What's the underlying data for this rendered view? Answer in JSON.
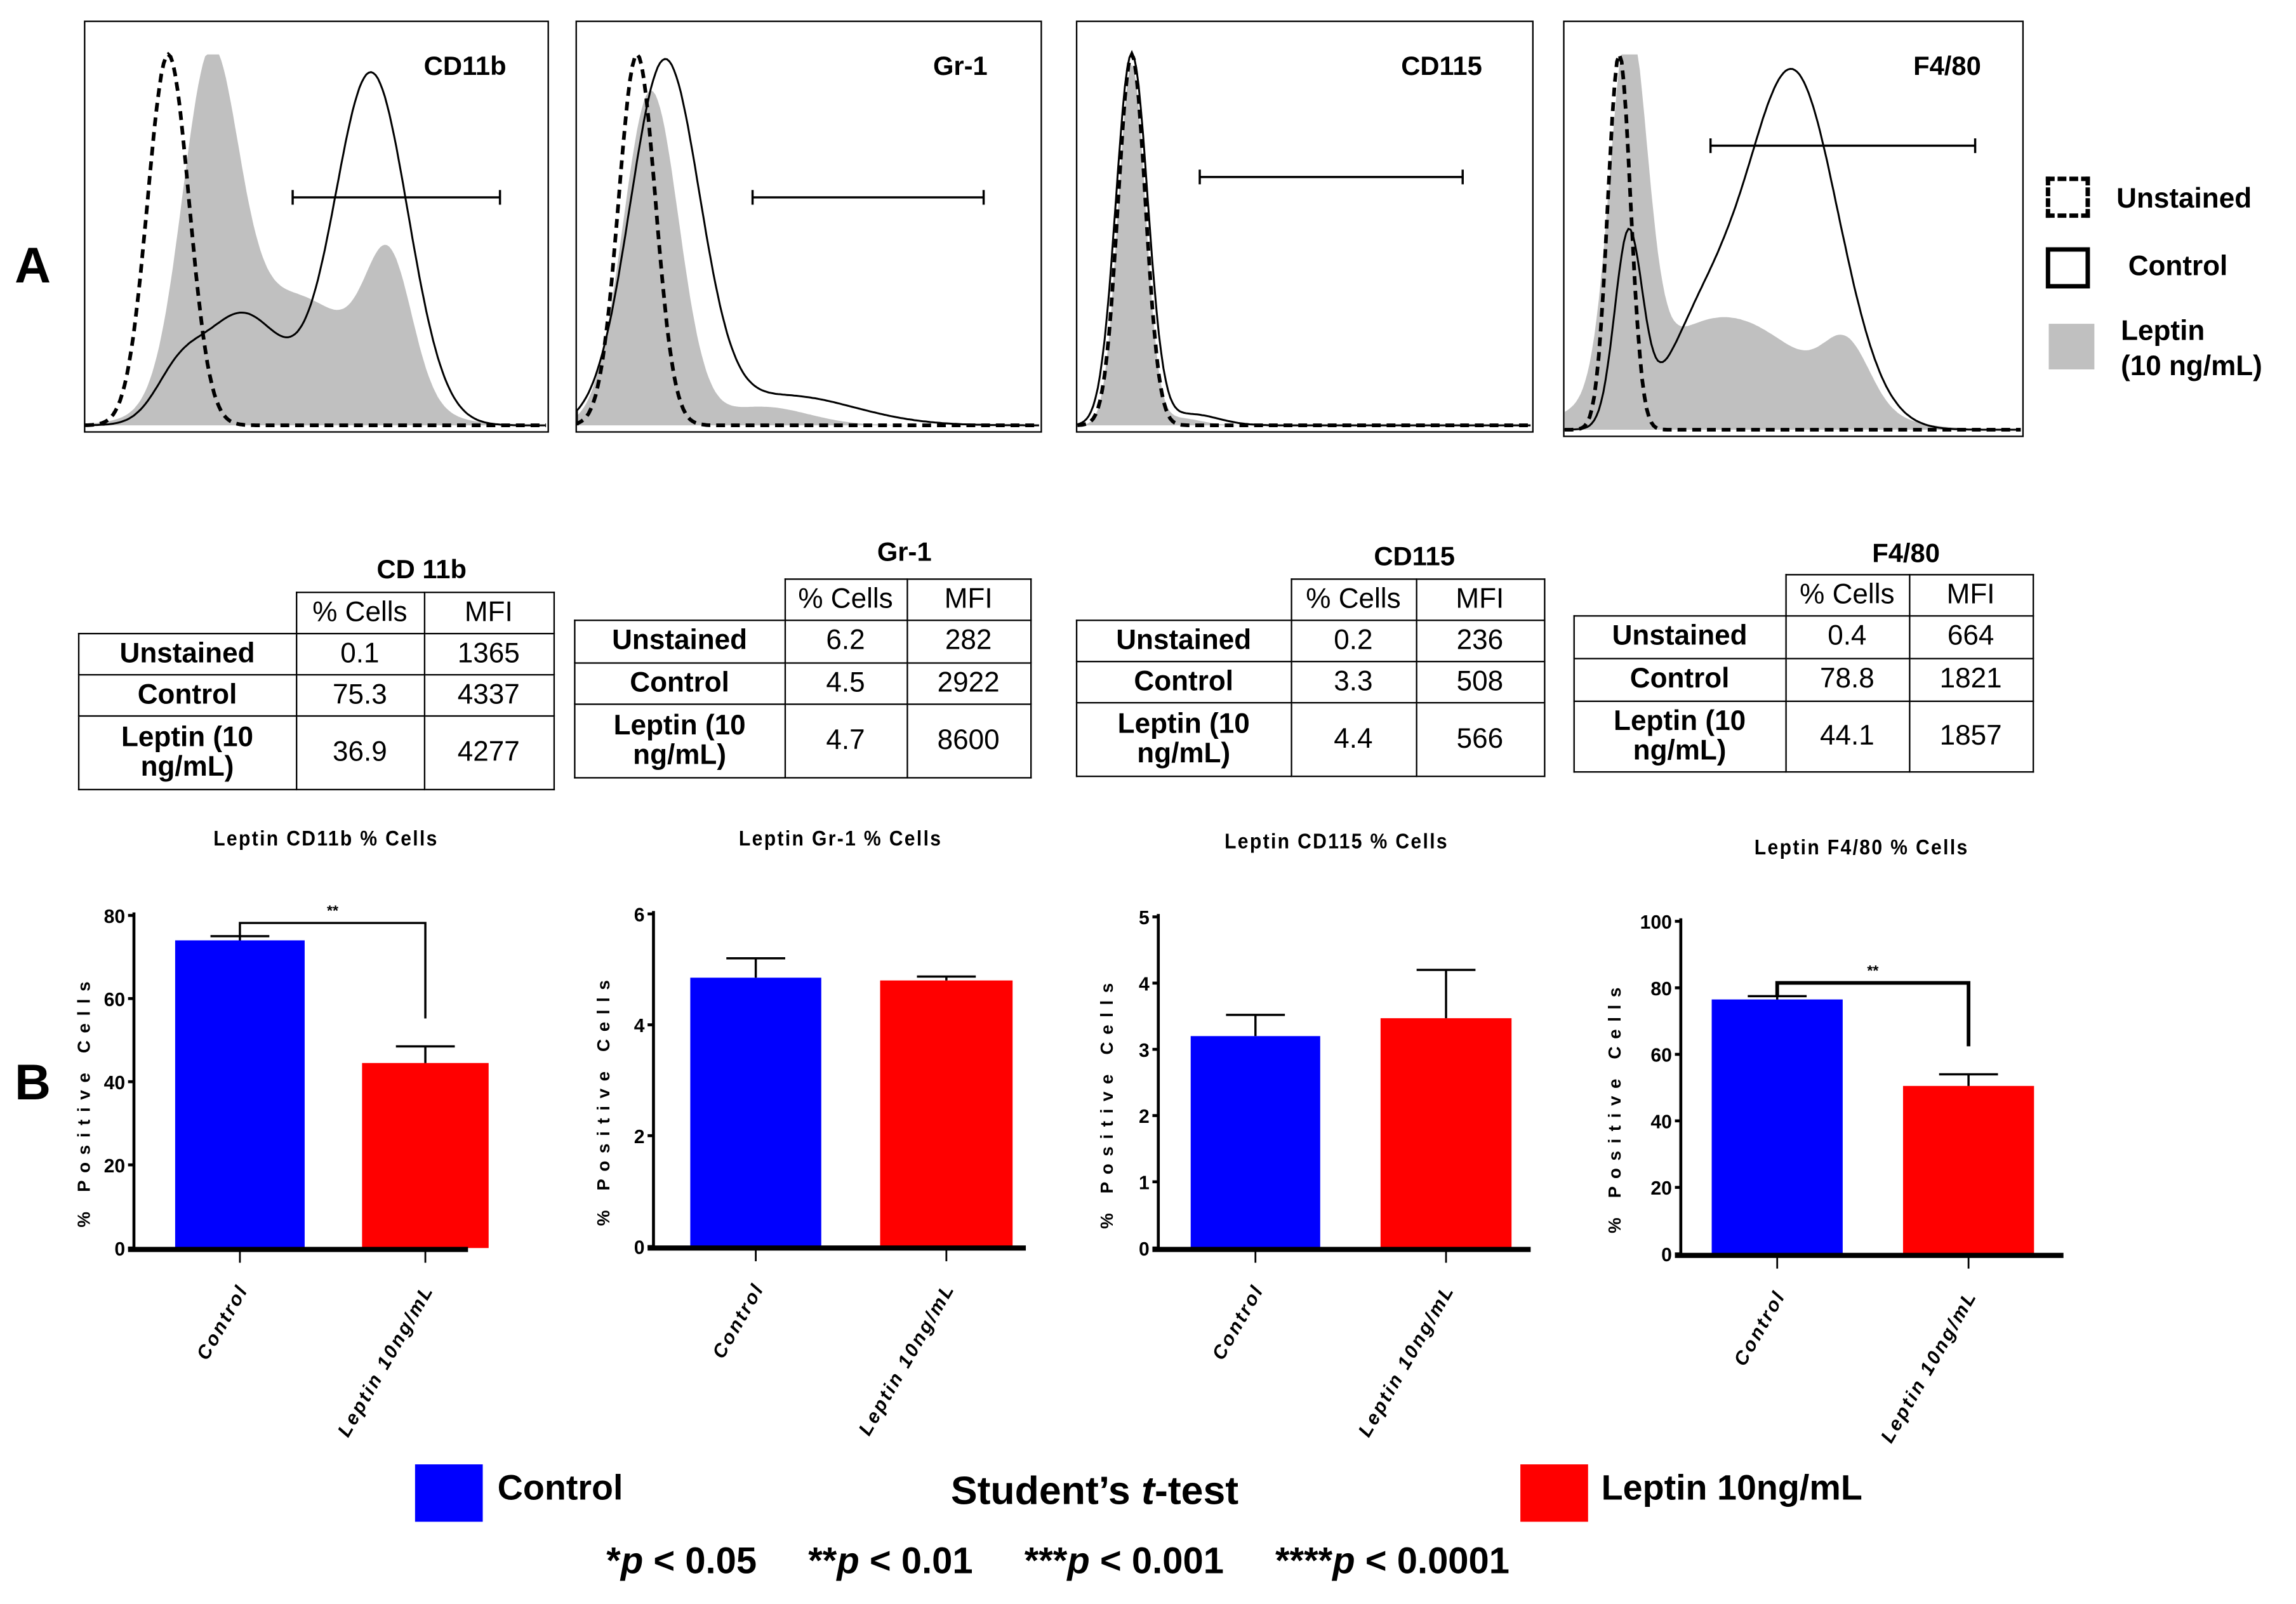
{
  "panel_labels": {
    "a": "A",
    "b": "B"
  },
  "histograms": [
    {
      "marker": "CD11b"
    },
    {
      "marker": "Gr-1"
    },
    {
      "marker": "CD115"
    },
    {
      "marker": "F4/80"
    }
  ],
  "histogram_legend": {
    "unstained": "Unstained",
    "control": "Control",
    "leptin_line1": "Leptin",
    "leptin_line2": "(10 ng/mL)",
    "leptin_color": "#c0c0c0"
  },
  "tables": [
    {
      "title": "CD 11b",
      "headers": [
        "% Cells",
        "MFI"
      ],
      "rows": [
        {
          "label": "Unstained",
          "pct": "0.1",
          "mfi": "1365"
        },
        {
          "label": "Control",
          "pct": "75.3",
          "mfi": "4337"
        },
        {
          "label": "Leptin (10 ng/mL)",
          "pct": "36.9",
          "mfi": "4277"
        }
      ]
    },
    {
      "title": "Gr-1",
      "headers": [
        "% Cells",
        "MFI"
      ],
      "rows": [
        {
          "label": "Unstained",
          "pct": "6.2",
          "mfi": "282"
        },
        {
          "label": "Control",
          "pct": "4.5",
          "mfi": "2922"
        },
        {
          "label": "Leptin (10 ng/mL)",
          "pct": "4.7",
          "mfi": "8600"
        }
      ]
    },
    {
      "title": "CD115",
      "headers": [
        "% Cells",
        "MFI"
      ],
      "rows": [
        {
          "label": "Unstained",
          "pct": "0.2",
          "mfi": "236"
        },
        {
          "label": "Control",
          "pct": "3.3",
          "mfi": "508"
        },
        {
          "label": "Leptin (10 ng/mL)",
          "pct": "4.4",
          "mfi": "566"
        }
      ]
    },
    {
      "title": "F4/80",
      "headers": [
        "% Cells",
        "MFI"
      ],
      "rows": [
        {
          "label": "Unstained",
          "pct": "0.4",
          "mfi": "664"
        },
        {
          "label": "Control",
          "pct": "78.8",
          "mfi": "1821"
        },
        {
          "label": "Leptin (10 ng/mL)",
          "pct": "44.1",
          "mfi": "1857"
        }
      ]
    }
  ],
  "chart_data": [
    {
      "type": "bar",
      "title": "Leptin CD11b % Cells",
      "ylabel": "% Positive Cells",
      "categories": [
        "Control",
        "Leptin 10ng/mL"
      ],
      "values": [
        74,
        44.5
      ],
      "error_upper": [
        75,
        48.5
      ],
      "ylim": [
        0,
        80
      ],
      "yticks": [
        0,
        20,
        40,
        60,
        80
      ],
      "significance": "**",
      "colors": [
        "#0000ff",
        "#ff0000"
      ]
    },
    {
      "type": "bar",
      "title": "Leptin Gr-1 % Cells",
      "ylabel": "% Positive Cells",
      "categories": [
        "Control",
        "Leptin 10ng/mL"
      ],
      "values": [
        4.85,
        4.8
      ],
      "error_upper": [
        5.2,
        4.87
      ],
      "ylim": [
        0,
        6
      ],
      "yticks": [
        0,
        2,
        4,
        6
      ],
      "significance": "",
      "colors": [
        "#0000ff",
        "#ff0000"
      ]
    },
    {
      "type": "bar",
      "title": "Leptin CD115 % Cells",
      "ylabel": "% Positive Cells",
      "categories": [
        "Control",
        "Leptin 10ng/mL"
      ],
      "values": [
        3.2,
        3.47
      ],
      "error_upper": [
        3.52,
        4.2
      ],
      "ylim": [
        0,
        5
      ],
      "yticks": [
        0,
        1,
        2,
        3,
        4,
        5
      ],
      "significance": "",
      "colors": [
        "#0000ff",
        "#ff0000"
      ]
    },
    {
      "type": "bar",
      "title": "Leptin F4/80 % Cells",
      "ylabel": "% Positive Cells",
      "categories": [
        "Control",
        "Leptin 10ng/mL"
      ],
      "values": [
        76.5,
        50.5
      ],
      "error_upper": [
        77.5,
        54
      ],
      "ylim": [
        0,
        100
      ],
      "yticks": [
        0,
        20,
        40,
        60,
        80,
        100
      ],
      "significance": "**",
      "colors": [
        "#0000ff",
        "#ff0000"
      ]
    }
  ],
  "bottom_legend": {
    "control": "Control",
    "control_color": "#0000ff",
    "leptin": "Leptin 10ng/mL",
    "leptin_color": "#ff0000",
    "test_prefix": "Student’s ",
    "test_t": "t",
    "test_suffix": "-test",
    "p_values": [
      {
        "stars": "*",
        "p": "p",
        "rest": " < 0.05"
      },
      {
        "stars": "**",
        "p": "p",
        "rest": " < 0.01"
      },
      {
        "stars": "***",
        "p": "p",
        "rest": " < 0.001"
      },
      {
        "stars": "****",
        "p": "p",
        "rest": " < 0.0001"
      }
    ]
  }
}
